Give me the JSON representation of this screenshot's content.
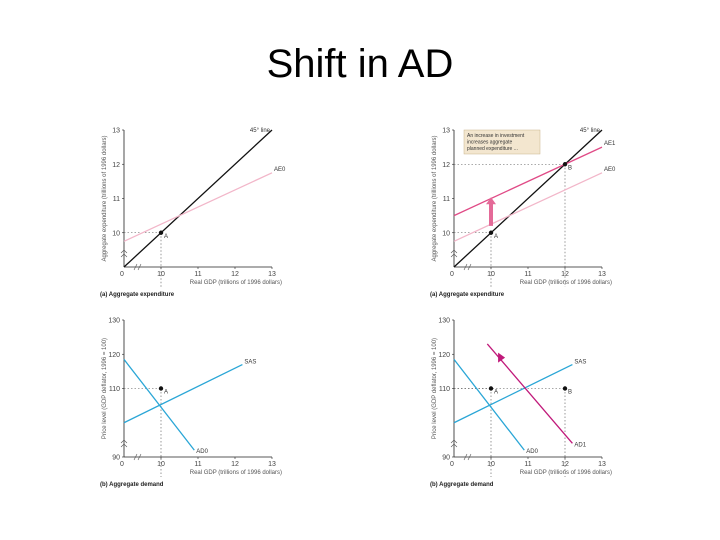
{
  "slide": {
    "title": "Shift in AD"
  },
  "colors": {
    "ae_old": "#f2b6c9",
    "ae_new": "#e04a86",
    "line45": "#111111",
    "sas": "#2aa6d6",
    "ad_old": "#2aa6d6",
    "ad_new": "#c0197a",
    "arrow_up": "#e46a98",
    "arrow_right": "#c0197a"
  },
  "chart_data": [
    {
      "type": "line",
      "panel": "top-left",
      "caption": "(a) Aggregate expenditure",
      "xlabel": "Real GDP (trillions of 1996 dollars)",
      "ylabel": "Aggregate expenditure (trillions of 1996 dollars)",
      "xlim": [
        9,
        13
      ],
      "ylim": [
        9,
        13
      ],
      "x_ticks": [
        "0",
        "10",
        "11",
        "12",
        "13"
      ],
      "y_ticks": [
        "10",
        "11",
        "12",
        "13"
      ],
      "series": [
        {
          "name": "45° line",
          "points": [
            [
              9,
              9
            ],
            [
              13,
              13
            ]
          ]
        },
        {
          "name": "AE0",
          "points": [
            [
              9,
              9.75
            ],
            [
              13,
              11.75
            ]
          ]
        }
      ],
      "points": [
        {
          "name": "A",
          "x": 10,
          "y": 10
        }
      ]
    },
    {
      "type": "line",
      "panel": "top-right",
      "caption": "(a) Aggregate expenditure",
      "xlabel": "Real GDP (trillions of 1996 dollars)",
      "ylabel": "Aggregate expenditure (trillions of 1996 dollars)",
      "xlim": [
        9,
        13
      ],
      "ylim": [
        9,
        13
      ],
      "x_ticks": [
        "0",
        "10",
        "11",
        "12",
        "13"
      ],
      "y_ticks": [
        "10",
        "11",
        "12",
        "13"
      ],
      "annotation": [
        "An increase in investment",
        "increases aggregate",
        "planned expenditure ..."
      ],
      "series": [
        {
          "name": "45° line",
          "points": [
            [
              9,
              9
            ],
            [
              13,
              13
            ]
          ]
        },
        {
          "name": "AE1",
          "points": [
            [
              9,
              10.5
            ],
            [
              13,
              12.5
            ]
          ]
        },
        {
          "name": "AE0",
          "points": [
            [
              9,
              9.75
            ],
            [
              13,
              11.75
            ]
          ]
        }
      ],
      "points": [
        {
          "name": "A",
          "x": 10,
          "y": 10
        },
        {
          "name": "B",
          "x": 12,
          "y": 12
        }
      ]
    },
    {
      "type": "line",
      "panel": "bottom-left",
      "caption": "(b) Aggregate demand",
      "xlabel": "Real GDP (trillions of 1996 dollars)",
      "ylabel": "Price level (GDP deflator, 1996 = 100)",
      "xlim": [
        9,
        13
      ],
      "ylim": [
        90,
        130
      ],
      "x_ticks": [
        "0",
        "10",
        "11",
        "12",
        "13"
      ],
      "y_ticks": [
        "90",
        "110",
        "120",
        "130"
      ],
      "series": [
        {
          "name": "SAS",
          "points": [
            [
              9,
              100
            ],
            [
              12.2,
              117
            ]
          ]
        },
        {
          "name": "AD0",
          "points": [
            [
              9,
              118.5
            ],
            [
              10.9,
              92
            ]
          ]
        }
      ],
      "points": [
        {
          "name": "A",
          "x": 10,
          "y": 110
        }
      ]
    },
    {
      "type": "line",
      "panel": "bottom-right",
      "caption": "(b) Aggregate demand",
      "xlabel": "Real GDP (trillions of 1996 dollars)",
      "ylabel": "Price level (GDP deflator, 1996 = 100)",
      "xlim": [
        9,
        13
      ],
      "ylim": [
        90,
        130
      ],
      "x_ticks": [
        "0",
        "10",
        "11",
        "12",
        "13"
      ],
      "y_ticks": [
        "90",
        "110",
        "120",
        "130"
      ],
      "series": [
        {
          "name": "SAS",
          "points": [
            [
              9,
              100
            ],
            [
              12.2,
              117
            ]
          ]
        },
        {
          "name": "AD0",
          "points": [
            [
              9,
              118.5
            ],
            [
              10.9,
              92
            ]
          ]
        },
        {
          "name": "AD1",
          "points": [
            [
              9.9,
              123
            ],
            [
              12.2,
              94
            ]
          ]
        }
      ],
      "points": [
        {
          "name": "A",
          "x": 10,
          "y": 110
        },
        {
          "name": "B",
          "x": 12,
          "y": 110
        }
      ]
    }
  ]
}
